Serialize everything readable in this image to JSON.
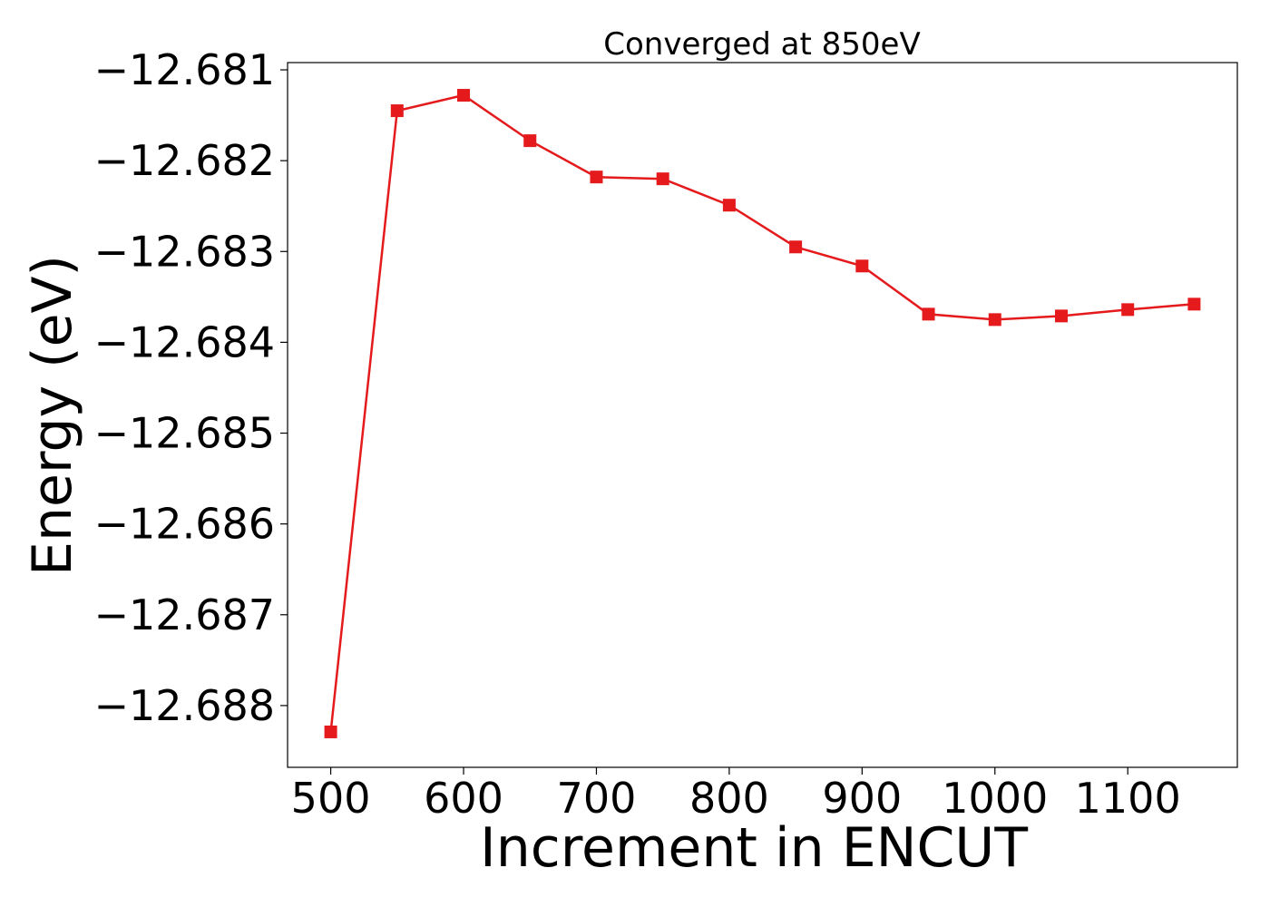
{
  "chart_data": {
    "type": "line",
    "title": "Converged at 850eV",
    "xlabel": "Increment in ENCUT",
    "ylabel": "Energy (eV)",
    "x": [
      500,
      550,
      600,
      650,
      700,
      750,
      800,
      850,
      900,
      950,
      1000,
      1050,
      1100,
      1150
    ],
    "series": [
      {
        "values": [
          -12.68829,
          -12.68145,
          -12.68128,
          -12.68178,
          -12.68218,
          -12.6822,
          -12.68249,
          -12.68295,
          -12.68316,
          -12.68369,
          -12.68375,
          -12.68371,
          -12.68364,
          -12.68358
        ],
        "color": "#e41a1c",
        "marker": "square"
      }
    ],
    "xlim": [
      467.5,
      1182.5
    ],
    "ylim": [
      -12.68868,
      -12.68092
    ],
    "xticks": [
      500,
      600,
      700,
      800,
      900,
      1000,
      1100
    ],
    "xtick_labels": [
      "500",
      "600",
      "700",
      "800",
      "900",
      "1000",
      "1100"
    ],
    "yticks": [
      -12.681,
      -12.682,
      -12.683,
      -12.684,
      -12.685,
      -12.686,
      -12.687,
      -12.688
    ],
    "ytick_labels": [
      "−12.681",
      "−12.682",
      "−12.683",
      "−12.684",
      "−12.685",
      "−12.686",
      "−12.687",
      "−12.688"
    ],
    "grid": false,
    "legend": "none"
  }
}
